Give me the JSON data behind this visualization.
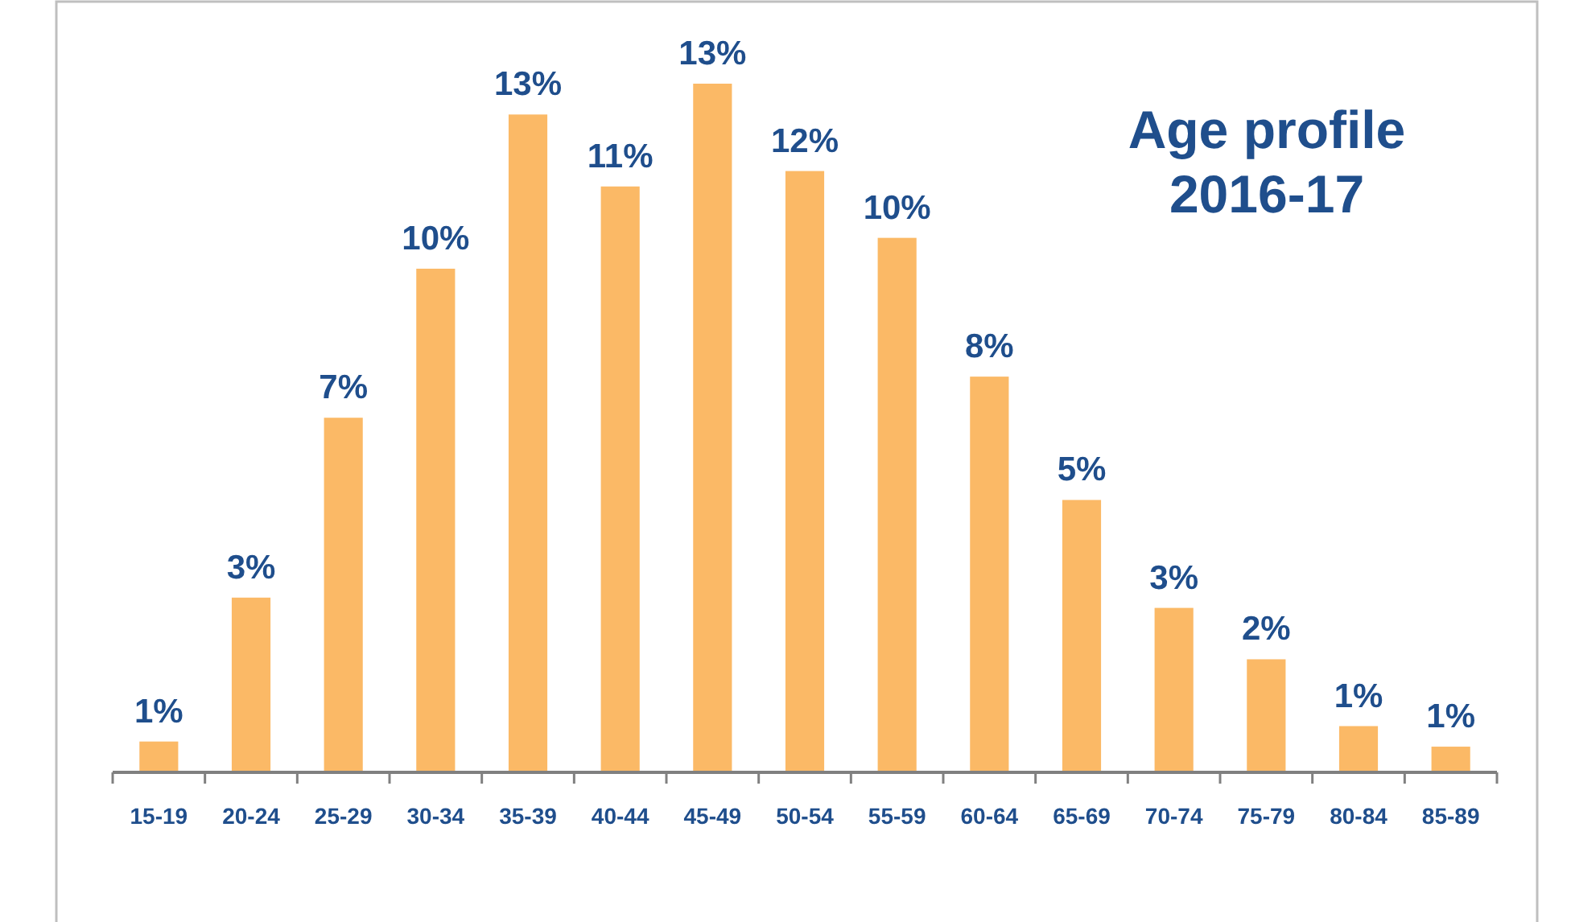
{
  "chart_data": {
    "type": "bar",
    "title": "Age profile\n2016-17",
    "categories": [
      "15-19",
      "20-24",
      "25-29",
      "30-34",
      "35-39",
      "40-44",
      "45-49",
      "50-54",
      "55-59",
      "60-64",
      "65-69",
      "70-74",
      "75-79",
      "80-84",
      "85-89"
    ],
    "values": [
      0.6,
      3.4,
      6.9,
      9.8,
      12.8,
      11.4,
      13.4,
      11.7,
      10.4,
      7.7,
      5.3,
      3.2,
      2.2,
      0.9,
      0.5
    ],
    "value_labels": [
      "1%",
      "3%",
      "7%",
      "10%",
      "13%",
      "11%",
      "13%",
      "12%",
      "10%",
      "8%",
      "5%",
      "3%",
      "2%",
      "1%",
      "1%"
    ],
    "color": "#fbb966",
    "ylim": [
      0,
      13.4
    ],
    "tick_labels": "x"
  }
}
